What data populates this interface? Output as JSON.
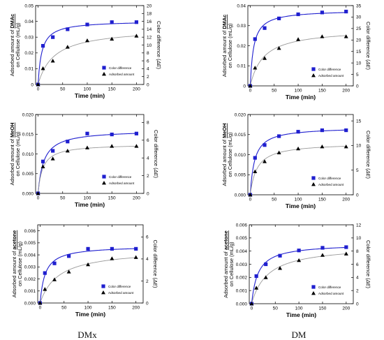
{
  "colors": {
    "color_series": "#1f1fcf",
    "adsorbed_series": "#000000",
    "adsorbed_fit": "#9a9a9a",
    "axis": "#000000"
  },
  "column_labels": [
    "DMx",
    "DM"
  ],
  "chart_data": [
    {
      "type": "scatter",
      "panel": "DMx - DMAc",
      "xlabel": "Time (min)",
      "ylabel_left": "Adsorbed amount of DMAc on Cellulose (mL/g)",
      "ylabel_left_bold": "DMAc",
      "ylabel_right": "Color difference (ΔE)",
      "x_ticks": [
        0,
        50,
        100,
        150,
        200
      ],
      "y_left_ticks": [
        "0",
        "0.01",
        "0.02",
        "0.03",
        "0.04",
        "0.05"
      ],
      "y_right_ticks": [
        "0",
        "2",
        "4",
        "6",
        "8",
        "10",
        "12",
        "14",
        "16",
        "18",
        "20"
      ],
      "xlim": [
        -5,
        215
      ],
      "ylim_left": [
        0,
        0.05
      ],
      "ylim_right": [
        0,
        20
      ],
      "series": [
        {
          "name": "Color difference",
          "axis": "right",
          "marker": "square",
          "x": [
            0,
            10,
            30,
            60,
            100,
            150,
            200
          ],
          "y": [
            0,
            9.8,
            12.0,
            14.0,
            15.2,
            15.8,
            15.8
          ]
        },
        {
          "name": "Adsorbed amount",
          "axis": "left",
          "marker": "triangle",
          "x": [
            0,
            10,
            30,
            60,
            100,
            150,
            200
          ],
          "y": [
            0,
            0.0102,
            0.015,
            0.0238,
            0.0279,
            0.0289,
            0.0308
          ]
        }
      ],
      "legend": {
        "position": "lower-right",
        "entries": [
          "Color difference",
          "Adsorbed amount"
        ]
      }
    },
    {
      "type": "scatter",
      "panel": "DM - DMAc",
      "xlabel": "Time (min)",
      "ylabel_left": "Adsorbed amount of DMAc on Cellulose (mL/g)",
      "ylabel_left_bold": "DMAc",
      "ylabel_right": "Color difference (ΔE)",
      "x_ticks": [
        0,
        50,
        100,
        150,
        200
      ],
      "y_left_ticks": [
        "0",
        "0.01",
        "0.02",
        "0.03",
        "0.04"
      ],
      "y_right_ticks": [
        "0",
        "5",
        "10",
        "15",
        "20",
        "25",
        "30",
        "35"
      ],
      "xlim": [
        -5,
        215
      ],
      "ylim_left": [
        0,
        0.04
      ],
      "ylim_right": [
        0,
        35
      ],
      "series": [
        {
          "name": "Color difference",
          "axis": "right",
          "marker": "square",
          "x": [
            0,
            10,
            30,
            60,
            100,
            150,
            200
          ],
          "y": [
            0,
            20.4,
            25.2,
            29.4,
            31.2,
            32.0,
            32.4
          ]
        },
        {
          "name": "Adsorbed amount",
          "axis": "left",
          "marker": "triangle",
          "x": [
            0,
            10,
            30,
            60,
            100,
            150,
            200
          ],
          "y": [
            0,
            0.009,
            0.0138,
            0.0188,
            0.0232,
            0.0246,
            0.0246
          ]
        }
      ],
      "legend": {
        "position": "lower-right",
        "entries": [
          "Color difference",
          "Adsorbed amount"
        ]
      }
    },
    {
      "type": "scatter",
      "panel": "DMx - MeOH",
      "xlabel": "Time (min)",
      "ylabel_left": "Adsorbed amount of MeOH on Cellulose (mL/g)",
      "ylabel_left_bold": "MeOH",
      "ylabel_right": "Color difference (ΔE)",
      "x_ticks": [
        0,
        50,
        100,
        150,
        200
      ],
      "y_left_ticks": [
        "0.000",
        "0.005",
        "0.010",
        "0.015",
        "0.020"
      ],
      "y_right_ticks": [
        "0",
        "2",
        "4",
        "6",
        "8"
      ],
      "xlim": [
        -5,
        215
      ],
      "ylim_left": [
        0,
        0.02
      ],
      "ylim_right": [
        0,
        8.9
      ],
      "series": [
        {
          "name": "Color difference",
          "axis": "right",
          "marker": "square",
          "x": [
            0,
            10,
            30,
            60,
            100,
            150,
            200
          ],
          "y": [
            0,
            3.6,
            4.8,
            5.85,
            6.75,
            6.65,
            6.75
          ]
        },
        {
          "name": "Adsorbed amount",
          "axis": "left",
          "marker": "triangle",
          "x": [
            0,
            10,
            30,
            60,
            100,
            150,
            200
          ],
          "y": [
            0,
            0.0068,
            0.0088,
            0.0108,
            0.0116,
            0.012,
            0.012
          ]
        }
      ],
      "legend": {
        "position": "lower-right",
        "entries": [
          "Color difference",
          "Adsorbed amount"
        ]
      }
    },
    {
      "type": "scatter",
      "panel": "DM - MeOH",
      "xlabel": "Time (min)",
      "ylabel_left": "Adsorbed amount of MeOH on Cellulose (mL/g)",
      "ylabel_left_bold": "MeOH",
      "ylabel_right": "Color difference (ΔE)",
      "x_ticks": [
        0,
        50,
        100,
        150,
        200
      ],
      "y_left_ticks": [
        "0.000",
        "0.005",
        "0.010",
        "0.015",
        "0.020"
      ],
      "y_right_ticks": [
        "0",
        "5",
        "10",
        "15"
      ],
      "xlim": [
        -5,
        215
      ],
      "ylim_left": [
        0,
        0.02
      ],
      "ylim_right": [
        0,
        16.3
      ],
      "series": [
        {
          "name": "Color difference",
          "axis": "right",
          "marker": "square",
          "x": [
            0,
            10,
            30,
            60,
            100,
            150,
            200
          ],
          "y": [
            0,
            7.5,
            10.1,
            11.9,
            12.8,
            13.1,
            13.1
          ]
        },
        {
          "name": "Adsorbed amount",
          "axis": "left",
          "marker": "triangle",
          "x": [
            0,
            10,
            30,
            60,
            100,
            150,
            200
          ],
          "y": [
            0,
            0.0058,
            0.0083,
            0.0105,
            0.0115,
            0.012,
            0.012
          ]
        }
      ],
      "legend": {
        "position": "lower-right",
        "entries": [
          "Color difference",
          "Adsorbed amount"
        ]
      }
    },
    {
      "type": "scatter",
      "panel": "DMx - acetone",
      "xlabel": "Time (min)",
      "ylabel_left": "Adsorbed amount of acetone on Cellulose (mL/g)",
      "ylabel_left_bold": "acetone",
      "ylabel_right": "Color difference (ΔE)",
      "x_ticks": [
        0,
        50,
        100,
        150,
        200
      ],
      "y_left_ticks": [
        "0.000",
        "0.001",
        "0.002",
        "0.003",
        "0.004",
        "0.005",
        "0.006"
      ],
      "y_right_ticks": [
        "0",
        "2",
        "4",
        "6"
      ],
      "xlim": [
        -5,
        215
      ],
      "ylim_left": [
        0,
        0.0065
      ],
      "ylim_right": [
        0,
        7.1
      ],
      "series": [
        {
          "name": "Color difference",
          "axis": "right",
          "marker": "square",
          "x": [
            0,
            10,
            30,
            60,
            100,
            150,
            200
          ],
          "y": [
            0,
            2.72,
            3.6,
            4.26,
            4.92,
            4.92,
            4.92
          ]
        },
        {
          "name": "Adsorbed amount",
          "axis": "left",
          "marker": "triangle",
          "x": [
            0,
            10,
            30,
            60,
            100,
            150,
            200
          ],
          "y": [
            0,
            0.00115,
            0.00195,
            0.0026,
            0.0032,
            0.0037,
            0.0038
          ]
        }
      ],
      "legend": {
        "position": "lower-right",
        "entries": [
          "Color difference",
          "Adsorbed amount"
        ]
      }
    },
    {
      "type": "scatter",
      "panel": "DM - acetone",
      "xlabel": "Time (min)",
      "ylabel_left": "Adsorbed amount of acetone on Cellulose (mL/g)",
      "ylabel_left_bold": "acetone",
      "ylabel_right": "Color difference (ΔE)",
      "x_ticks": [
        0,
        50,
        100,
        150,
        200
      ],
      "y_left_ticks": [
        "0.000",
        "0.001",
        "0.002",
        "0.003",
        "0.004",
        "0.005",
        "0.006"
      ],
      "y_right_ticks": [
        "0",
        "2",
        "4",
        "6",
        "8",
        "10",
        "12"
      ],
      "xlim": [
        -5,
        215
      ],
      "ylim_left": [
        0,
        0.006
      ],
      "ylim_right": [
        0,
        12
      ],
      "series": [
        {
          "name": "Color difference",
          "axis": "right",
          "marker": "square",
          "x": [
            0,
            10,
            30,
            60,
            100,
            150,
            200
          ],
          "y": [
            0,
            4.2,
            6.0,
            7.3,
            8.1,
            8.5,
            8.6
          ]
        },
        {
          "name": "Adsorbed amount",
          "axis": "left",
          "marker": "triangle",
          "x": [
            0,
            10,
            30,
            60,
            100,
            150,
            200
          ],
          "y": [
            0,
            0.0012,
            0.002,
            0.0027,
            0.0033,
            0.0037,
            0.0038
          ]
        }
      ],
      "legend": {
        "position": "lower-right",
        "entries": [
          "Color difference",
          "Adsorbed amount"
        ]
      }
    }
  ]
}
